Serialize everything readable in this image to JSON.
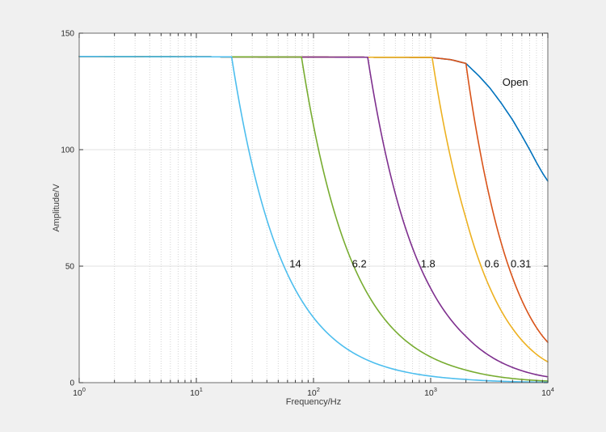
{
  "chart_data": {
    "type": "line",
    "title": "",
    "xlabel": "Frequency/Hz",
    "ylabel": "Amplitude/V",
    "x_scale": "log",
    "x_range": [
      1,
      10000
    ],
    "y_range": [
      0,
      150
    ],
    "ylim": [
      0,
      150
    ],
    "y_ticks": [
      0,
      50,
      100,
      150
    ],
    "x_major_ticks": [
      1,
      10,
      100,
      1000,
      10000
    ],
    "x_tick_labels": [
      {
        "base": "10",
        "exp": "0"
      },
      {
        "base": "10",
        "exp": "1"
      },
      {
        "base": "10",
        "exp": "2"
      },
      {
        "base": "10",
        "exp": "3"
      },
      {
        "base": "10",
        "exp": "4"
      }
    ],
    "grid": {
      "major_horizontal": true,
      "minor_vertical_log_decades": true,
      "legend_position": "none"
    },
    "colors": {
      "figure_background": "#f0f0f0",
      "plot_background": "#ffffff",
      "axis_box": "#6b6b6b",
      "tick": "#3a3a3a",
      "tick_label": "#2b2b2b",
      "axis_label": "#3d3d3d",
      "annotation_text": "#111111",
      "grid_horizontal": "#e2e2e2",
      "grid_minor_vertical": "#d4d4d4",
      "grid_major_vertical": "#c7c7c7"
    },
    "clip_level_v": 140,
    "open_response_points": [
      [
        1,
        140
      ],
      [
        1000,
        139.6
      ],
      [
        1500,
        138.6
      ],
      [
        2000,
        137.0
      ],
      [
        2600,
        131.5
      ],
      [
        3200,
        126.5
      ],
      [
        4000,
        120.0
      ],
      [
        5000,
        112.8
      ],
      [
        6000,
        106.0
      ],
      [
        7000,
        100.0
      ],
      [
        8000,
        94.5
      ],
      [
        9000,
        90.0
      ],
      [
        10000,
        86.5
      ]
    ],
    "series": [
      {
        "name": "open",
        "label": "Open",
        "color": "#0072BD",
        "corner_hz": null,
        "key_points": [
          [
            1,
            140
          ],
          [
            2000,
            137
          ],
          [
            4000,
            120
          ],
          [
            7000,
            100
          ],
          [
            10000,
            86.5
          ]
        ]
      },
      {
        "name": "r-0.31",
        "label": "0.31",
        "color": "#D95319",
        "corner_hz": 2000,
        "key_points": [
          [
            1,
            140
          ],
          [
            2000,
            137
          ],
          [
            2800,
            94.8
          ],
          [
            4000,
            61
          ],
          [
            10000,
            17.3
          ]
        ]
      },
      {
        "name": "r-0.6",
        "label": "0.6",
        "color": "#EDB120",
        "corner_hz": 1030,
        "key_points": [
          [
            1,
            140
          ],
          [
            1030,
            139.5
          ],
          [
            1440,
            98.9
          ],
          [
            2880,
            47.4
          ],
          [
            5150,
            22.3
          ],
          [
            10000,
            8.9
          ]
        ]
      },
      {
        "name": "r-1.8",
        "label": "1.8",
        "color": "#7E2F8E",
        "corner_hz": 290,
        "key_points": [
          [
            1,
            140
          ],
          [
            290,
            140
          ],
          [
            405,
            100
          ],
          [
            810,
            50
          ],
          [
            2900,
            13.2
          ],
          [
            10000,
            2.5
          ]
        ]
      },
      {
        "name": "r-6.2",
        "label": "6.2",
        "color": "#77AC30",
        "corner_hz": 79,
        "key_points": [
          [
            1,
            140
          ],
          [
            79,
            140
          ],
          [
            110,
            100
          ],
          [
            220,
            50
          ],
          [
            1000,
            11
          ],
          [
            10000,
            0.68
          ]
        ]
      },
      {
        "name": "r-14",
        "label": "14",
        "color": "#4DBEEE",
        "corner_hz": 20,
        "key_points": [
          [
            1,
            140
          ],
          [
            20,
            140
          ],
          [
            28,
            100
          ],
          [
            56,
            50
          ],
          [
            230,
            12.2
          ],
          [
            1000,
            2.8
          ],
          [
            10000,
            0.17
          ]
        ]
      }
    ],
    "annotations": [
      {
        "text": "Open",
        "f": 5270,
        "v": 129
      },
      {
        "text": "0.31",
        "f": 5890,
        "v": 51
      },
      {
        "text": "0.6",
        "f": 3330,
        "v": 51
      },
      {
        "text": "1.8",
        "f": 950,
        "v": 51
      },
      {
        "text": "6.2",
        "f": 246,
        "v": 51
      },
      {
        "text": "14",
        "f": 70,
        "v": 51
      }
    ]
  }
}
